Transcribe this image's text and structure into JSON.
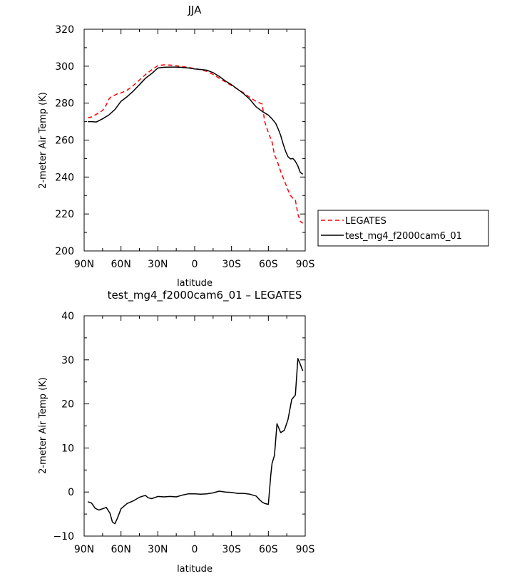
{
  "chart_data": [
    {
      "type": "line",
      "title": "JJA",
      "xlabel": "latitude",
      "ylabel": "2-meter Air Temp (K)",
      "xlim": [
        90,
        -90
      ],
      "ylim": [
        200,
        320
      ],
      "xticks": [
        90,
        60,
        30,
        0,
        -30,
        -60,
        -90
      ],
      "xtick_labels": [
        "90N",
        "60N",
        "30N",
        "0",
        "30S",
        "60S",
        "90S"
      ],
      "yticks": [
        200,
        220,
        240,
        260,
        280,
        300,
        320
      ],
      "ytick_labels": [
        "200",
        "220",
        "240",
        "260",
        "280",
        "300",
        "320"
      ],
      "legend_position": "right",
      "series": [
        {
          "name": "LEGATES",
          "color": "#ff0000",
          "style": "dashed",
          "x": [
            87,
            84,
            80,
            75,
            72,
            70,
            68,
            66,
            63,
            60,
            55,
            50,
            45,
            40,
            35,
            30,
            25,
            20,
            15,
            10,
            5,
            0,
            -5,
            -10,
            -15,
            -20,
            -25,
            -30,
            -35,
            -40,
            -45,
            -50,
            -55,
            -57,
            -60,
            -63,
            -65,
            -67,
            -70,
            -73,
            -76,
            -78,
            -80,
            -82,
            -84,
            -86,
            -88
          ],
          "y": [
            272,
            272.5,
            274,
            276,
            279,
            282,
            283.5,
            284,
            285,
            285.5,
            287,
            289.5,
            292.5,
            295.5,
            298,
            300.3,
            300.7,
            300.6,
            300.2,
            299.8,
            299.3,
            298.7,
            298,
            297.2,
            295.5,
            293.5,
            291.5,
            289.5,
            287.5,
            285.5,
            283,
            281,
            279.5,
            270,
            264,
            259,
            252,
            249,
            243,
            238,
            233,
            230,
            228.5,
            227.5,
            220,
            216,
            215
          ]
        },
        {
          "name": "test_mg4_f2000cam6_01",
          "color": "#000000",
          "style": "solid",
          "x": [
            87,
            84,
            80,
            75,
            70,
            65,
            60,
            55,
            50,
            45,
            40,
            35,
            30,
            25,
            20,
            15,
            10,
            5,
            0,
            -5,
            -10,
            -15,
            -20,
            -25,
            -30,
            -35,
            -40,
            -45,
            -50,
            -55,
            -60,
            -63,
            -66,
            -68,
            -70,
            -72,
            -74,
            -76,
            -78,
            -80,
            -82,
            -84,
            -86,
            -88
          ],
          "y": [
            270,
            270,
            269.8,
            271.5,
            273.5,
            276.5,
            281,
            283.5,
            286.5,
            290,
            293.5,
            296,
            299,
            299.4,
            299.5,
            299.5,
            299.3,
            299,
            298.5,
            298.2,
            297.8,
            296.5,
            294.5,
            292,
            290,
            287.5,
            285,
            282,
            278,
            275.5,
            273.5,
            271.5,
            269,
            266,
            262.5,
            258,
            254,
            251,
            249.8,
            250,
            248.5,
            246,
            242.5,
            241.5
          ]
        }
      ]
    },
    {
      "type": "line",
      "title": "test_mg4_f2000cam6_01 – LEGATES",
      "xlabel": "latitude",
      "ylabel": "2-meter Air Temp (K)",
      "xlim": [
        90,
        -90
      ],
      "ylim": [
        -10,
        40
      ],
      "xticks": [
        90,
        60,
        30,
        0,
        -30,
        -60,
        -90
      ],
      "xtick_labels": [
        "90N",
        "60N",
        "30N",
        "0",
        "30S",
        "60S",
        "90S"
      ],
      "yticks": [
        -10,
        0,
        10,
        20,
        30,
        40
      ],
      "ytick_labels": [
        "−10",
        "0",
        "10",
        "20",
        "30",
        "40"
      ],
      "series": [
        {
          "name": "",
          "color": "#000000",
          "style": "solid",
          "x": [
            87,
            84,
            81,
            78,
            75,
            72,
            69,
            67,
            65,
            63,
            60,
            55,
            50,
            45,
            42,
            40,
            38,
            35,
            30,
            25,
            20,
            15,
            10,
            5,
            0,
            -5,
            -10,
            -15,
            -20,
            -25,
            -30,
            -35,
            -40,
            -45,
            -50,
            -53,
            -55,
            -57,
            -60,
            -62,
            -63,
            -65,
            -67,
            -70,
            -73,
            -76,
            -79,
            -82,
            -84,
            -86,
            -88
          ],
          "y": [
            -2.2,
            -2.5,
            -3.7,
            -4.1,
            -3.8,
            -3.5,
            -4.8,
            -6.8,
            -7.2,
            -6,
            -3.8,
            -2.6,
            -2,
            -1.2,
            -0.9,
            -0.8,
            -1.3,
            -1.5,
            -1,
            -1.1,
            -1,
            -1.1,
            -0.7,
            -0.4,
            -0.4,
            -0.5,
            -0.4,
            -0.2,
            0.2,
            0,
            -0.1,
            -0.3,
            -0.3,
            -0.5,
            -0.9,
            -1.8,
            -2.3,
            -2.6,
            -2.8,
            4,
            6.5,
            8.3,
            15.5,
            13.5,
            14,
            16.5,
            21,
            22,
            30.3,
            29,
            27.5
          ]
        }
      ]
    }
  ]
}
